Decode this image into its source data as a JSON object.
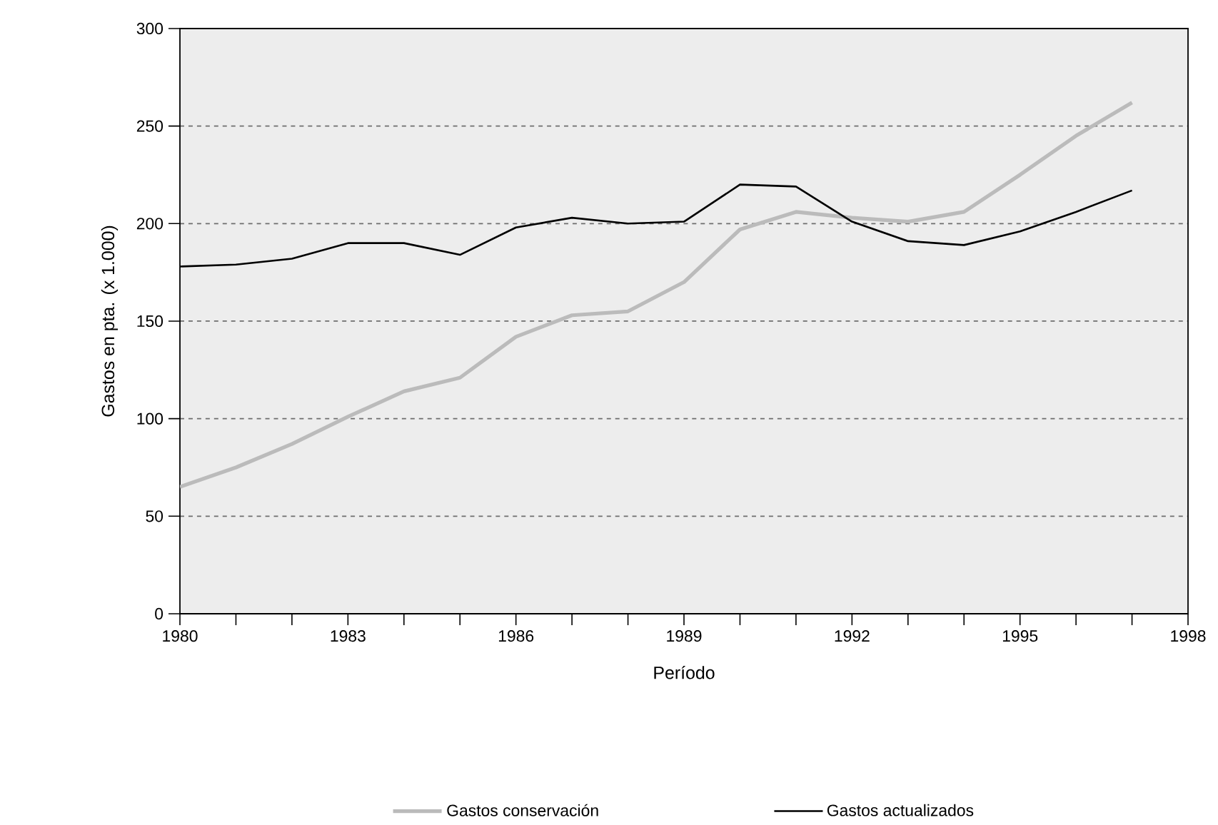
{
  "chart_data": {
    "type": "line",
    "xlabel": "Período",
    "ylabel": "Gastos en pta. (x 1.000)",
    "x": [
      1980,
      1981,
      1982,
      1983,
      1984,
      1985,
      1986,
      1987,
      1988,
      1989,
      1990,
      1991,
      1992,
      1993,
      1994,
      1995,
      1996,
      1997
    ],
    "series": [
      {
        "name": "Gastos conservación",
        "color": "#bbbbbb",
        "values": [
          65,
          75,
          87,
          101,
          114,
          121,
          142,
          153,
          155,
          170,
          197,
          206,
          203,
          201,
          206,
          225,
          245,
          262
        ]
      },
      {
        "name": "Gastos actualizados",
        "color": "#000000",
        "values": [
          178,
          179,
          182,
          190,
          190,
          184,
          198,
          203,
          200,
          201,
          220,
          219,
          201,
          191,
          189,
          196,
          206,
          217
        ]
      }
    ],
    "xlim": [
      1980,
      1998
    ],
    "xticks": [
      1980,
      {
        "value": 1981,
        "label": null
      },
      {
        "value": 1982,
        "label": null
      },
      1983,
      {
        "value": 1984,
        "label": null
      },
      {
        "value": 1985,
        "label": null
      },
      1986,
      {
        "value": 1987,
        "label": null
      },
      {
        "value": 1988,
        "label": null
      },
      1989,
      {
        "value": 1990,
        "label": null
      },
      {
        "value": 1991,
        "label": null
      },
      1992,
      {
        "value": 1993,
        "label": null
      },
      {
        "value": 1994,
        "label": null
      },
      1995,
      {
        "value": 1996,
        "label": null
      },
      {
        "value": 1997,
        "label": null
      },
      1998
    ],
    "ylim": [
      0,
      300
    ],
    "yticks": [
      0,
      50,
      100,
      150,
      200,
      250,
      300
    ],
    "grid": "y",
    "legend": "bottom",
    "marker": "none",
    "line_style": "solid"
  }
}
